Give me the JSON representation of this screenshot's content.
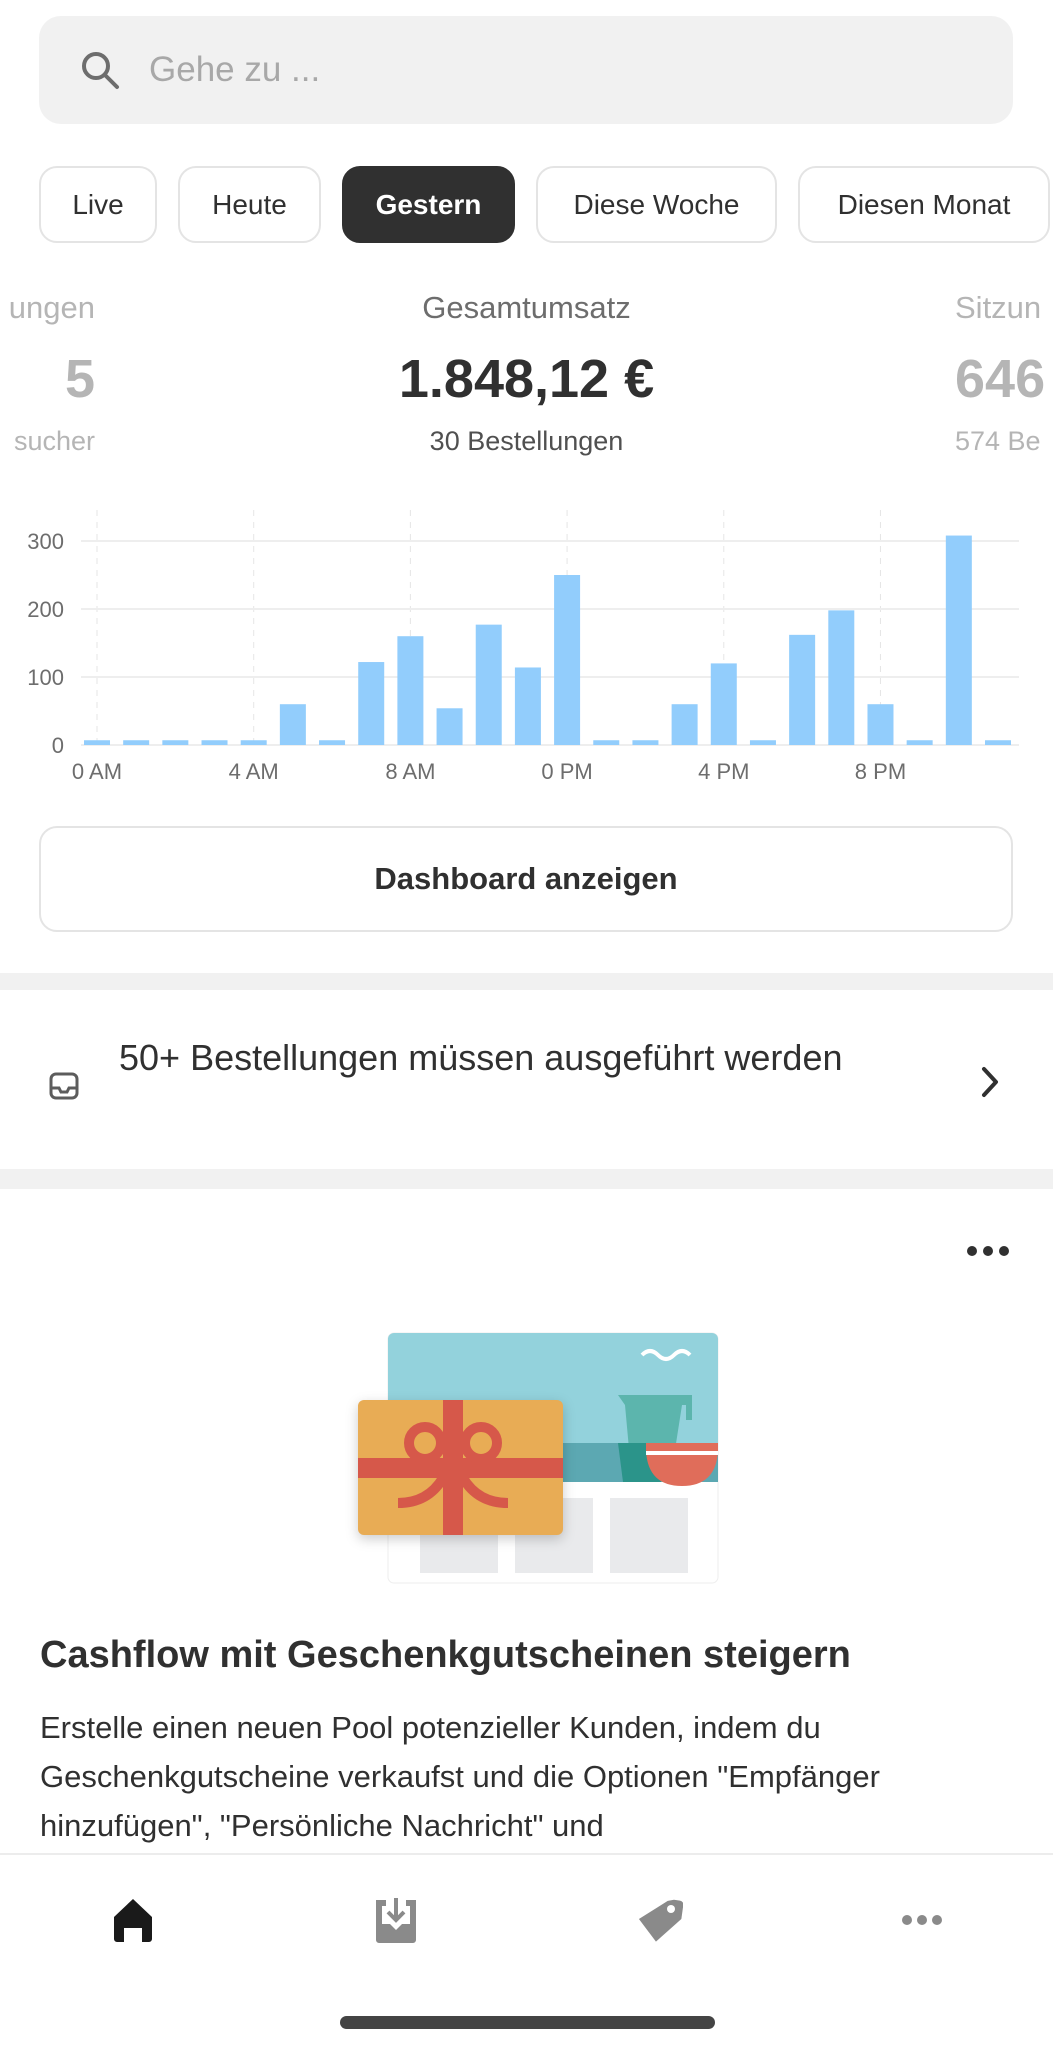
{
  "search": {
    "placeholder": "Gehe zu ...",
    "icon": "search-icon"
  },
  "tabs": [
    {
      "label": "Live"
    },
    {
      "label": "Heute"
    },
    {
      "label": "Gestern",
      "active": true
    },
    {
      "label": "Diese Woche"
    },
    {
      "label": "Diesen Monat"
    }
  ],
  "stats": {
    "left": {
      "label": "ungen",
      "value": "5",
      "sub": "sucher"
    },
    "center": {
      "label": "Gesamtumsatz",
      "value": "1.848,12 €",
      "sub": "30 Bestellungen"
    },
    "right": {
      "label": "Sitzun",
      "value": "646",
      "sub": "574 Be"
    }
  },
  "chart_data": {
    "type": "bar",
    "categories": [
      "0",
      "1",
      "2",
      "3",
      "4",
      "5",
      "6",
      "7",
      "8",
      "9",
      "10",
      "11",
      "12",
      "13",
      "14",
      "15",
      "16",
      "17",
      "18",
      "19",
      "20",
      "21",
      "22",
      "23"
    ],
    "values": [
      7,
      7,
      7,
      7,
      7,
      60,
      7,
      122,
      160,
      54,
      177,
      114,
      250,
      7,
      7,
      60,
      120,
      7,
      162,
      198,
      60,
      7,
      308,
      7
    ],
    "x_tick_labels": [
      "0 AM",
      "4 AM",
      "8 AM",
      "0 PM",
      "4 PM",
      "8 PM"
    ],
    "y_ticks": [
      "0",
      "100",
      "200",
      "300"
    ],
    "ylim": [
      0,
      330
    ],
    "grid": true,
    "color": "#92cdfc"
  },
  "dashboard_button": "Dashboard anzeigen",
  "banner": {
    "text": "50+ Bestellungen müssen ausgeführt werden",
    "icon": "inbox-icon"
  },
  "card": {
    "title": "Cashflow mit Geschenkgutscheinen steigern",
    "body": "Erstelle einen neuen Pool potenzieller Kunden, indem du Geschenkgutscheine verkaufst und die Optionen \"Empfänger hinzufügen\", \"Persönliche Nachricht\" und"
  },
  "nav": [
    {
      "icon": "home-icon",
      "active": true
    },
    {
      "icon": "orders-icon"
    },
    {
      "icon": "tag-icon"
    },
    {
      "icon": "more-icon"
    }
  ]
}
